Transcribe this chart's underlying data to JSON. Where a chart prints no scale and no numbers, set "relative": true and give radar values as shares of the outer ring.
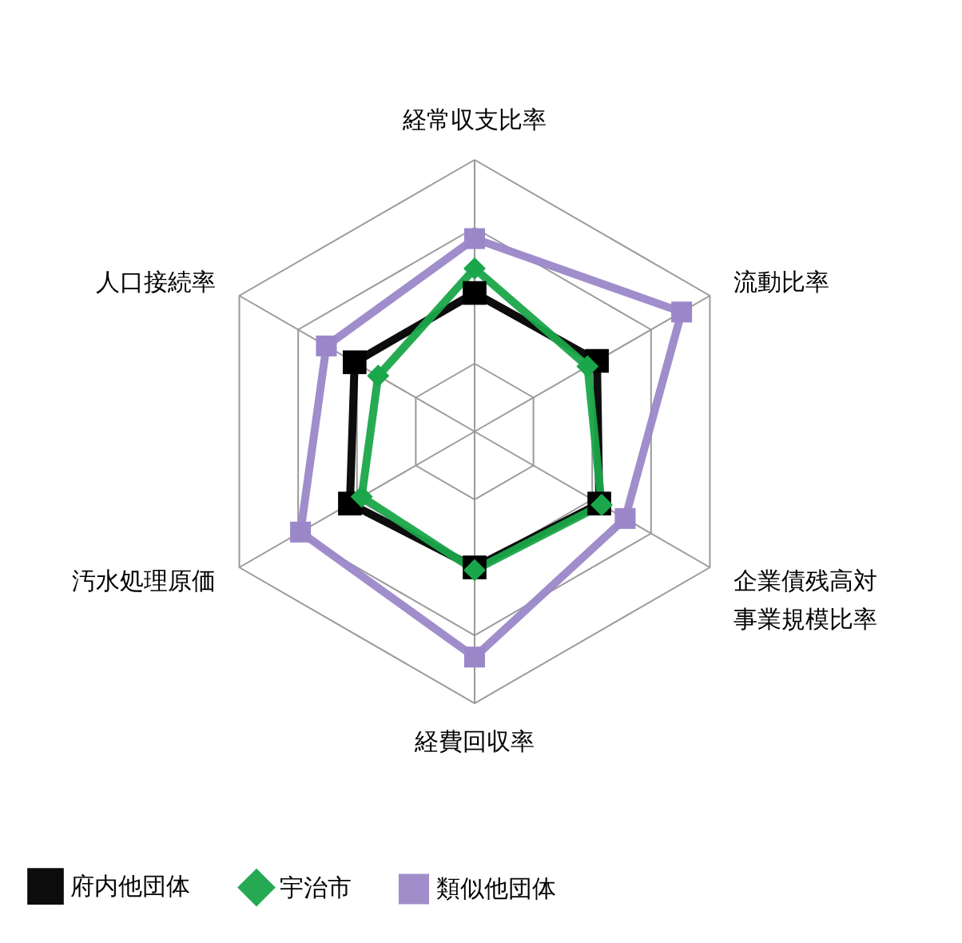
{
  "chart_data": {
    "type": "radar",
    "relative": true,
    "grid": true,
    "legend": "bottom",
    "categories": [
      "経常収支比率",
      "流動比率",
      "企業債残高対事業規模比率",
      "経費回収率",
      "汚水処理原価",
      "人口接続率"
    ],
    "series": [
      {
        "name": "府内他団体",
        "color": "#000000",
        "marker": "square",
        "values": [
          0.51,
          0.52,
          0.53,
          0.5,
          0.53,
          0.51
        ]
      },
      {
        "name": "宇治市",
        "color": "#1aa64a",
        "marker": "diamond",
        "values": [
          0.6,
          0.48,
          0.54,
          0.51,
          0.48,
          0.41
        ]
      },
      {
        "name": "類似他団体",
        "color": "#9b87c8",
        "marker": "square",
        "values": [
          0.71,
          0.88,
          0.64,
          0.83,
          0.74,
          0.63
        ]
      }
    ]
  }
}
